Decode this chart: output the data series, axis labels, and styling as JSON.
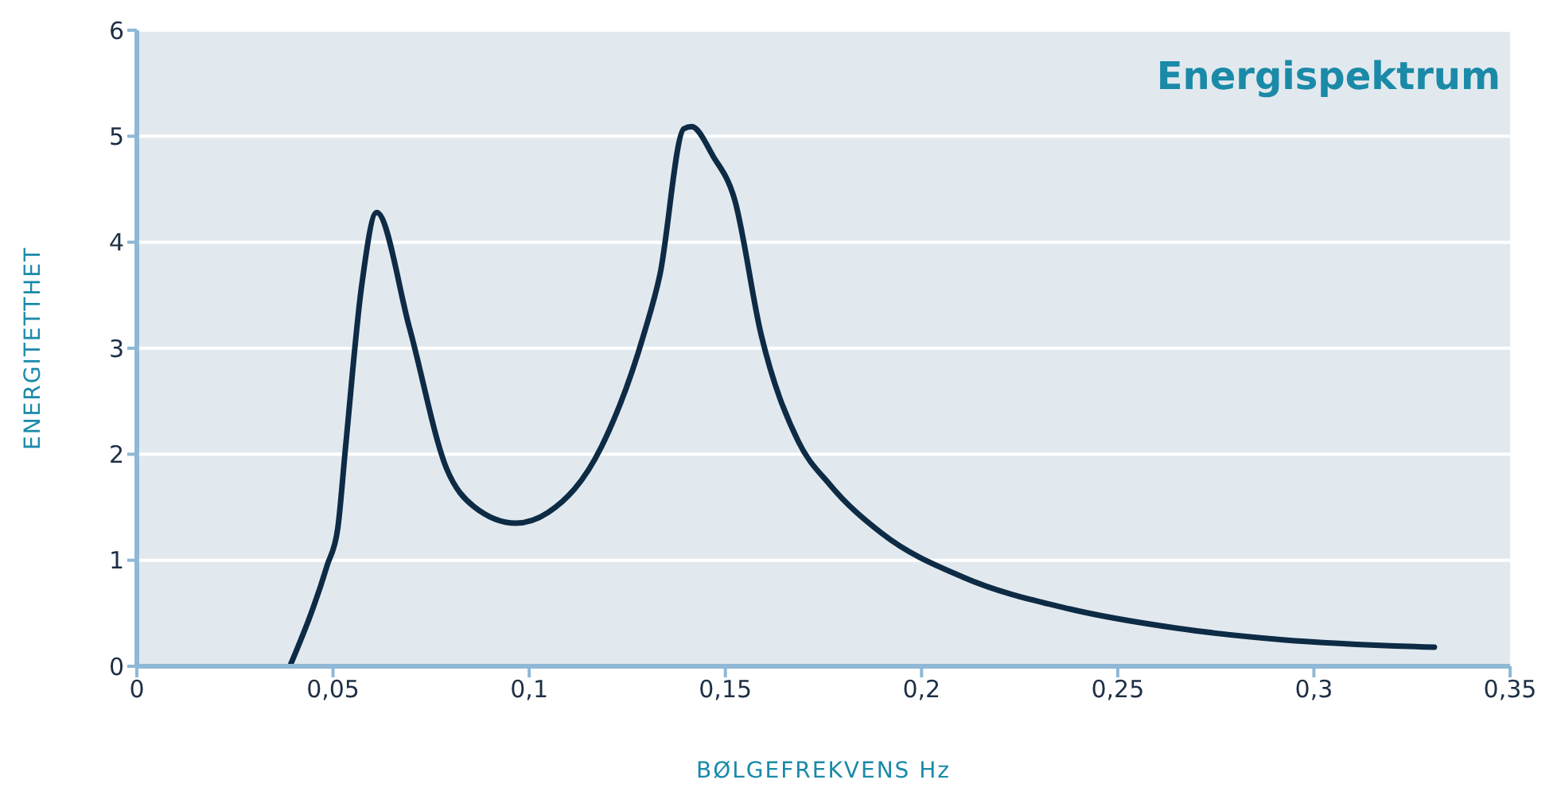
{
  "chart_data": {
    "type": "line",
    "title": "Energispektrum",
    "xlabel": "BØLGEFREKVENS Hz",
    "ylabel": "ENERGITETTHET",
    "series": [
      {
        "color": "#0d2b45",
        "x": [
          0.039,
          0.0485,
          0.0512,
          0.0532,
          0.0573,
          0.0611,
          0.0695,
          0.079,
          0.0858,
          0.0966,
          0.1048,
          0.1184,
          0.1292,
          0.1333,
          0.1394,
          0.1414,
          0.1469,
          0.1523,
          0.1591,
          0.1686,
          0.1767,
          0.19,
          0.2106,
          0.2378,
          0.2649,
          0.2921,
          0.3307
        ],
        "values": [
          0,
          0.95,
          1.3,
          2.07,
          3.59,
          4.28,
          3.19,
          1.86,
          1.51,
          1.35,
          1.45,
          2.07,
          3.13,
          3.69,
          5.07,
          5.09,
          4.81,
          4.41,
          3.13,
          2.12,
          1.71,
          1.25,
          0.84,
          0.54,
          0.36,
          0.25,
          0.18
        ]
      }
    ],
    "xlim": [
      0,
      0.35
    ],
    "xticks": [
      0,
      {
        "value": 0.05,
        "label": "0,05"
      },
      {
        "value": 0.1,
        "label": "0,1"
      },
      {
        "value": 0.15,
        "label": "0,15"
      },
      {
        "value": 0.2,
        "label": "0,2"
      },
      {
        "value": 0.25,
        "label": "0,25"
      },
      {
        "value": 0.3,
        "label": "0,3"
      },
      {
        "value": 0.35,
        "label": "0,35"
      }
    ],
    "ylim": [
      0,
      6
    ],
    "yticks": [
      0,
      1,
      2,
      3,
      4,
      5,
      6
    ],
    "grid": "y",
    "legend": false,
    "marker": "none",
    "line_style": "solid"
  }
}
